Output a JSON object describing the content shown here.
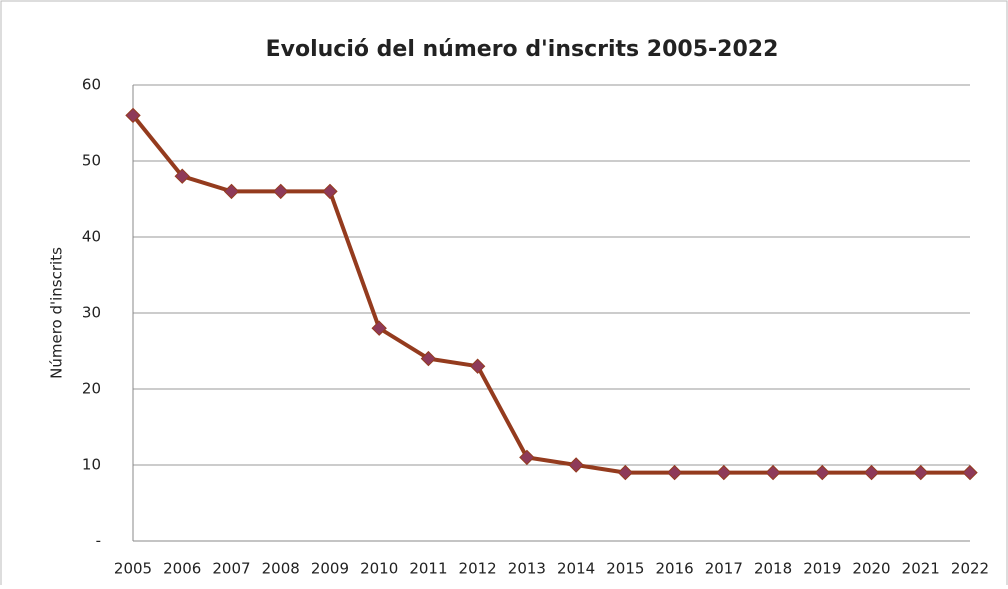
{
  "chart_data": {
    "type": "line",
    "title": "Evolució del número d'inscrits 2005-2022",
    "y_label": "Número d'inscrits",
    "categories": [
      "2005",
      "2006",
      "2007",
      "2008",
      "2009",
      "2010",
      "2011",
      "2012",
      "2013",
      "2014",
      "2015",
      "2016",
      "2017",
      "2018",
      "2019",
      "2020",
      "2021",
      "2022"
    ],
    "values": [
      56,
      48,
      46,
      46,
      46,
      28,
      24,
      23,
      11,
      10,
      9,
      9,
      9,
      9,
      9,
      9,
      9,
      9
    ],
    "color": "#943b1e",
    "marker_color": "#8e3a59",
    "ylim": [
      0,
      60
    ],
    "yticks": [
      {
        "value": 0,
        "label": "-"
      },
      10,
      20,
      30,
      40,
      50,
      60
    ],
    "grid": true
  }
}
